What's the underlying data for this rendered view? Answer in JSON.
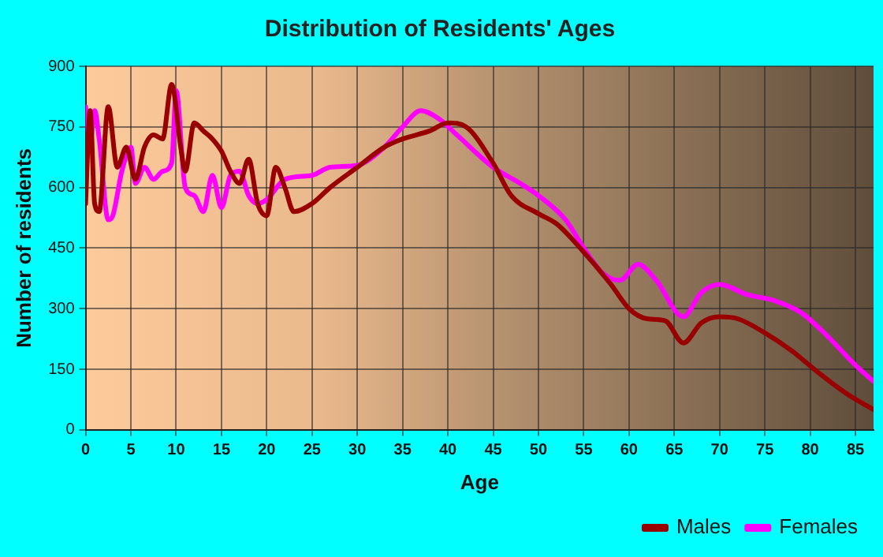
{
  "chart_data": {
    "type": "line",
    "title": "Distribution of Residents' Ages",
    "xlabel": "Age",
    "ylabel": "Number of residents",
    "xlim": [
      0,
      87
    ],
    "xticks": [
      0,
      5,
      10,
      15,
      20,
      25,
      30,
      35,
      40,
      45,
      50,
      55,
      60,
      65,
      70,
      75,
      80,
      85
    ],
    "ylim": [
      0,
      900
    ],
    "yticks": [
      0,
      150,
      300,
      450,
      600,
      750,
      900
    ],
    "grid": true,
    "legend": "bottom right",
    "marker": "none",
    "line_style": "solid",
    "series": [
      {
        "name": "Males",
        "color": "#990000",
        "x": [
          0,
          0.5,
          1,
          1.5,
          2.5,
          3.5,
          4.5,
          5.5,
          6.5,
          7.5,
          8.5,
          9.5,
          10.5,
          11,
          12,
          13,
          14,
          15,
          16,
          17,
          18,
          19,
          20,
          21,
          22,
          23,
          25,
          27,
          30,
          33,
          35,
          38,
          40,
          42,
          45,
          47,
          50,
          52,
          55,
          58,
          60,
          62,
          64,
          66,
          68,
          70,
          72,
          75,
          78,
          81,
          84,
          87
        ],
        "values": [
          560,
          790,
          560,
          540,
          800,
          650,
          700,
          620,
          700,
          730,
          720,
          855,
          700,
          640,
          760,
          740,
          720,
          690,
          640,
          610,
          670,
          560,
          530,
          650,
          600,
          540,
          560,
          600,
          650,
          700,
          720,
          740,
          760,
          750,
          660,
          580,
          535,
          510,
          440,
          360,
          300,
          275,
          270,
          215,
          265,
          280,
          275,
          240,
          195,
          140,
          90,
          50
        ]
      },
      {
        "name": "Females",
        "color": "#ff00ff",
        "x": [
          0,
          0.5,
          1,
          1.5,
          2.5,
          3,
          4,
          5,
          5.5,
          6.5,
          7.5,
          8.5,
          9.5,
          10,
          11,
          12,
          13,
          14,
          15,
          16,
          17,
          18,
          19,
          20,
          22,
          25,
          27,
          30,
          33,
          35,
          37,
          39,
          41,
          45,
          48,
          50,
          53,
          55,
          57,
          59,
          61,
          63,
          66,
          68,
          70,
          73,
          76,
          79,
          82,
          85,
          87
        ],
        "values": [
          800,
          710,
          790,
          720,
          520,
          530,
          640,
          700,
          610,
          650,
          620,
          640,
          660,
          840,
          600,
          580,
          540,
          630,
          550,
          630,
          640,
          580,
          560,
          570,
          620,
          630,
          650,
          655,
          700,
          750,
          790,
          770,
          730,
          650,
          610,
          580,
          520,
          450,
          390,
          370,
          410,
          370,
          280,
          340,
          360,
          335,
          320,
          290,
          230,
          160,
          120
        ]
      }
    ]
  }
}
